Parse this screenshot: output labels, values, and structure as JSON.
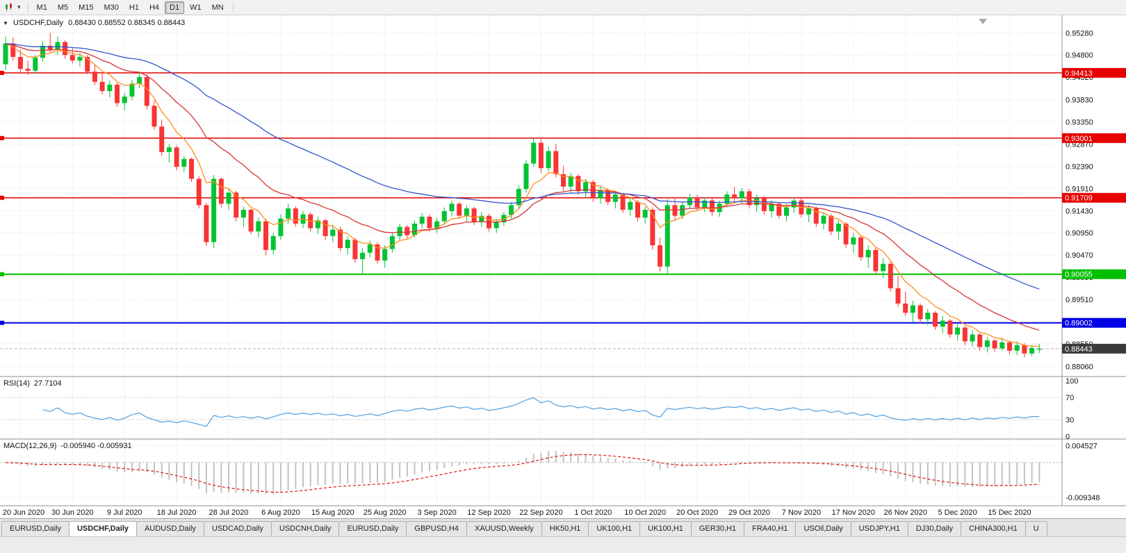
{
  "app": {
    "toolbar": {
      "timeframes": [
        "M1",
        "M5",
        "M15",
        "M30",
        "H1",
        "H4",
        "D1",
        "W1",
        "MN"
      ],
      "active_timeframe": "D1"
    },
    "icons": {
      "collapse": "▼",
      "dropdown": "▾"
    },
    "tabs": [
      {
        "label": "EURUSD,Daily",
        "active": false
      },
      {
        "label": "USDCHF,Daily",
        "active": true
      },
      {
        "label": "AUDUSD,Daily",
        "active": false
      },
      {
        "label": "USDCAD,Daily",
        "active": false
      },
      {
        "label": "USDCNH,Daily",
        "active": false
      },
      {
        "label": "EURUSD,Daily",
        "active": false
      },
      {
        "label": "GBPUSD,H4",
        "active": false
      },
      {
        "label": "XAUUSD,Weekly",
        "active": false
      },
      {
        "label": "HK50,H1",
        "active": false
      },
      {
        "label": "UK100,H1",
        "active": false
      },
      {
        "label": "UK100,H1",
        "active": false
      },
      {
        "label": "GER30,H1",
        "active": false
      },
      {
        "label": "FRA40,H1",
        "active": false
      },
      {
        "label": "USOil,Daily",
        "active": false
      },
      {
        "label": "USDJPY,H1",
        "active": false
      },
      {
        "label": "DJ30,Daily",
        "active": false
      },
      {
        "label": "CHINA300,H1",
        "active": false
      },
      {
        "label": "U",
        "active": false
      }
    ]
  },
  "chart_data": {
    "type": "candlestick",
    "symbol_title": "USDCHF,Daily",
    "ohlc_text": "0.88430 0.88552 0.88345 0.88443",
    "ohlc": {
      "open": 0.8843,
      "high": 0.88552,
      "low": 0.88345,
      "close": 0.88443
    },
    "ylim": {
      "min": 0.879,
      "max": 0.956
    },
    "price_axis_labels": [
      "0.95280",
      "0.94800",
      "0.94320",
      "0.93830",
      "0.93350",
      "0.92870",
      "0.92390",
      "0.91910",
      "0.91430",
      "0.90950",
      "0.90470",
      "0.89990",
      "0.89510",
      "0.89030",
      "0.88550",
      "0.88060"
    ],
    "x_axis": {
      "first_index": 2,
      "every": 7,
      "labels": [
        "20 Jun 2020",
        "30 Jun 2020",
        "9 Jul 2020",
        "18 Jul 2020",
        "28 Jul 2020",
        "6 Aug 2020",
        "15 Aug 2020",
        "25 Aug 2020",
        "3 Sep 2020",
        "12 Sep 2020",
        "22 Sep 2020",
        "1 Oct 2020",
        "10 Oct 2020",
        "20 Oct 2020",
        "29 Oct 2020",
        "7 Nov 2020",
        "17 Nov 2020",
        "26 Nov 2020",
        "5 Dec 2020",
        "15 Dec 2020"
      ]
    },
    "hlines": [
      {
        "value": 0.94413,
        "label": "0.94413",
        "color": "#e60000",
        "width": 1.5
      },
      {
        "value": 0.93001,
        "label": "0.93001",
        "color": "#e60000",
        "width": 1.5
      },
      {
        "value": 0.91709,
        "label": "0.91709",
        "color": "#e60000",
        "width": 1.5
      },
      {
        "value": 0.90055,
        "label": "0.90055",
        "color": "#00bf00",
        "width": 2
      },
      {
        "value": 0.89002,
        "label": "0.89002",
        "color": "#0000e6",
        "width": 2
      }
    ],
    "current_price": {
      "value": 0.88443,
      "label": "0.88443",
      "color": "#3a3a3a"
    },
    "up_color": "#00c432",
    "down_color": "#f93434",
    "moving_averages": [
      {
        "name": "fast-ma",
        "period": 7,
        "color": "#ff8c1a"
      },
      {
        "name": "medium-ma",
        "period": 18,
        "color": "#d63333"
      },
      {
        "name": "slow-ma",
        "period": 45,
        "color": "#3050d0"
      }
    ],
    "rsi": {
      "title": "RSI(14)",
      "current": "27.7104",
      "period": 14,
      "color": "#4f9fe0",
      "levels": [
        "100",
        "70",
        "30",
        "0"
      ],
      "level_lines": [
        70,
        30
      ],
      "range": [
        0,
        100
      ]
    },
    "macd": {
      "title": "MACD(12,26,9)",
      "current": "-0.005940 -0.005931",
      "fast": 12,
      "slow": 26,
      "signal": 9,
      "range": [
        -0.0105,
        0.0052
      ],
      "axis_labels": [
        {
          "value": 0.004527,
          "text": "0.004527"
        },
        {
          "value": -0.009348,
          "text": "-0.009348"
        }
      ],
      "hist_color": "#c2c2c2",
      "signal_color": "#e01010"
    },
    "candles": [
      [
        0.946,
        0.952,
        0.9448,
        0.9505
      ],
      [
        0.9505,
        0.9518,
        0.9468,
        0.9476
      ],
      [
        0.9476,
        0.9492,
        0.944,
        0.945
      ],
      [
        0.945,
        0.9468,
        0.9437,
        0.9446
      ],
      [
        0.9446,
        0.948,
        0.944,
        0.9474
      ],
      [
        0.9474,
        0.951,
        0.9466,
        0.95
      ],
      [
        0.95,
        0.9528,
        0.9486,
        0.9492
      ],
      [
        0.9492,
        0.952,
        0.948,
        0.9508
      ],
      [
        0.9508,
        0.9512,
        0.9472,
        0.948
      ],
      [
        0.948,
        0.9495,
        0.9462,
        0.9468
      ],
      [
        0.9468,
        0.9484,
        0.9455,
        0.9476
      ],
      [
        0.9476,
        0.948,
        0.9438,
        0.9444
      ],
      [
        0.9444,
        0.9458,
        0.9415,
        0.9422
      ],
      [
        0.9422,
        0.944,
        0.9395,
        0.9402
      ],
      [
        0.9402,
        0.9424,
        0.9388,
        0.9416
      ],
      [
        0.9416,
        0.942,
        0.9368,
        0.9376
      ],
      [
        0.9376,
        0.9398,
        0.936,
        0.939
      ],
      [
        0.939,
        0.9425,
        0.9382,
        0.9418
      ],
      [
        0.9418,
        0.9442,
        0.9408,
        0.9432
      ],
      [
        0.9432,
        0.9438,
        0.9362,
        0.937
      ],
      [
        0.937,
        0.9382,
        0.9318,
        0.9325
      ],
      [
        0.9325,
        0.934,
        0.9262,
        0.927
      ],
      [
        0.927,
        0.9288,
        0.9248,
        0.928
      ],
      [
        0.928,
        0.9285,
        0.923,
        0.9238
      ],
      [
        0.9238,
        0.9262,
        0.9226,
        0.9255
      ],
      [
        0.9255,
        0.9258,
        0.9205,
        0.9212
      ],
      [
        0.9212,
        0.9218,
        0.9148,
        0.9155
      ],
      [
        0.9155,
        0.916,
        0.9066,
        0.9075
      ],
      [
        0.9075,
        0.922,
        0.9062,
        0.9212
      ],
      [
        0.9212,
        0.9215,
        0.915,
        0.9158
      ],
      [
        0.9158,
        0.919,
        0.9145,
        0.9182
      ],
      [
        0.9182,
        0.9186,
        0.912,
        0.9128
      ],
      [
        0.9128,
        0.9152,
        0.9108,
        0.9145
      ],
      [
        0.9145,
        0.9148,
        0.9092,
        0.9098
      ],
      [
        0.9098,
        0.9128,
        0.9085,
        0.912
      ],
      [
        0.912,
        0.9125,
        0.9046,
        0.9058
      ],
      [
        0.9058,
        0.9095,
        0.9048,
        0.9088
      ],
      [
        0.9088,
        0.9135,
        0.908,
        0.9126
      ],
      [
        0.9126,
        0.9158,
        0.9115,
        0.9148
      ],
      [
        0.9148,
        0.9152,
        0.9108,
        0.9115
      ],
      [
        0.9115,
        0.9142,
        0.9105,
        0.9135
      ],
      [
        0.9135,
        0.914,
        0.9098,
        0.9105
      ],
      [
        0.9105,
        0.913,
        0.9092,
        0.9122
      ],
      [
        0.9122,
        0.9126,
        0.908,
        0.9088
      ],
      [
        0.9088,
        0.9112,
        0.9075,
        0.9102
      ],
      [
        0.9102,
        0.9108,
        0.9055,
        0.9062
      ],
      [
        0.9062,
        0.9088,
        0.9048,
        0.908
      ],
      [
        0.908,
        0.9084,
        0.903,
        0.9038
      ],
      [
        0.9038,
        0.9062,
        0.9006,
        0.9052
      ],
      [
        0.9052,
        0.9078,
        0.9042,
        0.907
      ],
      [
        0.907,
        0.9075,
        0.9028,
        0.9035
      ],
      [
        0.9035,
        0.9068,
        0.902,
        0.906
      ],
      [
        0.906,
        0.9095,
        0.9052,
        0.9088
      ],
      [
        0.9088,
        0.9115,
        0.9078,
        0.9108
      ],
      [
        0.9108,
        0.9112,
        0.9082,
        0.909
      ],
      [
        0.909,
        0.9122,
        0.9085,
        0.9115
      ],
      [
        0.9115,
        0.9138,
        0.9105,
        0.913
      ],
      [
        0.913,
        0.9135,
        0.9098,
        0.9105
      ],
      [
        0.9105,
        0.9128,
        0.9095,
        0.912
      ],
      [
        0.912,
        0.915,
        0.9112,
        0.9142
      ],
      [
        0.9142,
        0.9165,
        0.913,
        0.9158
      ],
      [
        0.9158,
        0.9162,
        0.9125,
        0.9132
      ],
      [
        0.9132,
        0.9155,
        0.912,
        0.9148
      ],
      [
        0.9148,
        0.9152,
        0.9112,
        0.9118
      ],
      [
        0.9118,
        0.914,
        0.9108,
        0.9132
      ],
      [
        0.9132,
        0.9136,
        0.9098,
        0.9105
      ],
      [
        0.9105,
        0.9126,
        0.9095,
        0.9118
      ],
      [
        0.9118,
        0.914,
        0.911,
        0.9134
      ],
      [
        0.9134,
        0.9162,
        0.9126,
        0.9155
      ],
      [
        0.9155,
        0.9198,
        0.9148,
        0.919
      ],
      [
        0.919,
        0.9252,
        0.9182,
        0.9245
      ],
      [
        0.9245,
        0.93,
        0.9238,
        0.929
      ],
      [
        0.929,
        0.9298,
        0.9225,
        0.9235
      ],
      [
        0.9235,
        0.9282,
        0.9228,
        0.9272
      ],
      [
        0.9272,
        0.9288,
        0.9215,
        0.9222
      ],
      [
        0.9222,
        0.924,
        0.9185,
        0.9195
      ],
      [
        0.9195,
        0.9225,
        0.9182,
        0.9218
      ],
      [
        0.9218,
        0.9222,
        0.9178,
        0.9185
      ],
      [
        0.9185,
        0.9212,
        0.9172,
        0.9205
      ],
      [
        0.9205,
        0.921,
        0.9162,
        0.917
      ],
      [
        0.917,
        0.9195,
        0.9158,
        0.9188
      ],
      [
        0.9188,
        0.9192,
        0.9155,
        0.9162
      ],
      [
        0.9162,
        0.9185,
        0.9148,
        0.9178
      ],
      [
        0.9178,
        0.9182,
        0.9138,
        0.9145
      ],
      [
        0.9145,
        0.917,
        0.9132,
        0.9162
      ],
      [
        0.9162,
        0.9166,
        0.912,
        0.9128
      ],
      [
        0.9128,
        0.9152,
        0.9115,
        0.9145
      ],
      [
        0.9145,
        0.915,
        0.9058,
        0.9068
      ],
      [
        0.9068,
        0.9085,
        0.9012,
        0.9022
      ],
      [
        0.9022,
        0.9168,
        0.9004,
        0.9155
      ],
      [
        0.9155,
        0.9172,
        0.9122,
        0.9132
      ],
      [
        0.9132,
        0.9162,
        0.9125,
        0.9155
      ],
      [
        0.9155,
        0.918,
        0.9148,
        0.9172
      ],
      [
        0.9172,
        0.9178,
        0.9142,
        0.915
      ],
      [
        0.915,
        0.9172,
        0.914,
        0.9165
      ],
      [
        0.9165,
        0.917,
        0.9132,
        0.914
      ],
      [
        0.914,
        0.9165,
        0.913,
        0.9158
      ],
      [
        0.9158,
        0.9185,
        0.915,
        0.9178
      ],
      [
        0.9178,
        0.9195,
        0.9162,
        0.917
      ],
      [
        0.917,
        0.9192,
        0.9158,
        0.9185
      ],
      [
        0.9185,
        0.919,
        0.9148,
        0.9155
      ],
      [
        0.9155,
        0.9178,
        0.914,
        0.917
      ],
      [
        0.917,
        0.9175,
        0.9135,
        0.9142
      ],
      [
        0.9142,
        0.9165,
        0.9128,
        0.9158
      ],
      [
        0.9158,
        0.9162,
        0.9125,
        0.9132
      ],
      [
        0.9132,
        0.9158,
        0.912,
        0.915
      ],
      [
        0.915,
        0.9172,
        0.9138,
        0.9165
      ],
      [
        0.9165,
        0.917,
        0.9128,
        0.9135
      ],
      [
        0.9135,
        0.9155,
        0.9118,
        0.9148
      ],
      [
        0.9148,
        0.9152,
        0.9108,
        0.9115
      ],
      [
        0.9115,
        0.914,
        0.9102,
        0.9132
      ],
      [
        0.9132,
        0.9136,
        0.909,
        0.9098
      ],
      [
        0.9098,
        0.9122,
        0.908,
        0.9115
      ],
      [
        0.9115,
        0.9118,
        0.9062,
        0.907
      ],
      [
        0.907,
        0.9095,
        0.9052,
        0.9085
      ],
      [
        0.9085,
        0.909,
        0.9035,
        0.9042
      ],
      [
        0.9042,
        0.9068,
        0.902,
        0.9058
      ],
      [
        0.9058,
        0.9062,
        0.9005,
        0.9012
      ],
      [
        0.9012,
        0.904,
        0.8998,
        0.9028
      ],
      [
        0.9028,
        0.9032,
        0.8968,
        0.8975
      ],
      [
        0.8975,
        0.9002,
        0.8935,
        0.8942
      ],
      [
        0.8942,
        0.8968,
        0.8915,
        0.8922
      ],
      [
        0.8922,
        0.8948,
        0.8902,
        0.8938
      ],
      [
        0.8938,
        0.8942,
        0.8898,
        0.8908
      ],
      [
        0.8908,
        0.893,
        0.8895,
        0.8922
      ],
      [
        0.8922,
        0.8926,
        0.8885,
        0.8892
      ],
      [
        0.8892,
        0.8915,
        0.8878,
        0.8905
      ],
      [
        0.8905,
        0.8908,
        0.8868,
        0.8875
      ],
      [
        0.8875,
        0.8898,
        0.8862,
        0.889
      ],
      [
        0.889,
        0.8894,
        0.8852,
        0.886
      ],
      [
        0.886,
        0.8885,
        0.8848,
        0.8875
      ],
      [
        0.8875,
        0.8878,
        0.884,
        0.8848
      ],
      [
        0.8848,
        0.887,
        0.8836,
        0.8862
      ],
      [
        0.8862,
        0.8865,
        0.8838,
        0.8845
      ],
      [
        0.8845,
        0.8868,
        0.884,
        0.8858
      ],
      [
        0.8858,
        0.8862,
        0.8832,
        0.884
      ],
      [
        0.884,
        0.886,
        0.883,
        0.8852
      ],
      [
        0.8852,
        0.8856,
        0.8826,
        0.8834
      ],
      [
        0.8834,
        0.8852,
        0.8828,
        0.8846
      ],
      [
        0.8843,
        0.88552,
        0.88345,
        0.88443
      ]
    ]
  }
}
